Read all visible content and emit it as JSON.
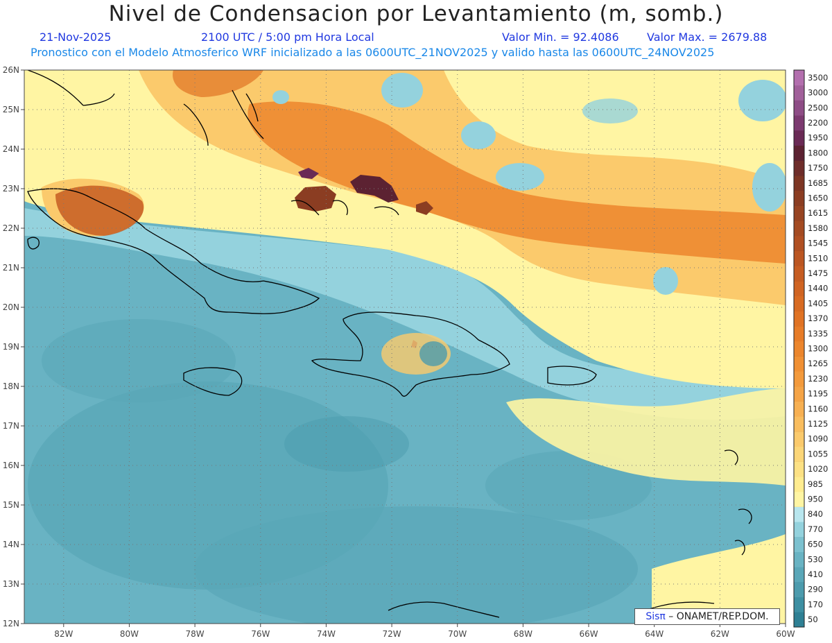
{
  "header": {
    "title": "Nivel de Condensacion por Levantamiento (m, somb.)",
    "date": "21-Nov-2025",
    "time": "2100 UTC / 5:00 pm Hora Local",
    "min_label": "Valor Min. = 92.4086",
    "max_label": "Valor Max. = 2679.88",
    "model_line": "Pronostico con el Modelo Atmosferico WRF inicializado a las 0600UTC_21NOV2025 y valido hasta las  0600UTC_24NOV2025"
  },
  "credit": {
    "logo_text": "Sisπ",
    "text": " – ONAMET/REP.DOM."
  },
  "map": {
    "lon_range": [
      -83.2,
      -60
    ],
    "lat_range": [
      12,
      26
    ],
    "lon_ticks": [
      "82W",
      "80W",
      "78W",
      "76W",
      "74W",
      "72W",
      "70W",
      "68W",
      "66W",
      "64W",
      "62W",
      "60W"
    ],
    "lat_ticks": [
      "12N",
      "13N",
      "14N",
      "15N",
      "16N",
      "17N",
      "18N",
      "19N",
      "20N",
      "21N",
      "22N",
      "23N",
      "24N",
      "25N",
      "26N"
    ]
  },
  "colorbar": {
    "labels": [
      "50",
      "170",
      "290",
      "410",
      "530",
      "650",
      "770",
      "840",
      "950",
      "985",
      "1020",
      "1055",
      "1090",
      "1125",
      "1160",
      "1195",
      "1230",
      "1265",
      "1300",
      "1335",
      "1370",
      "1405",
      "1440",
      "1475",
      "1510",
      "1545",
      "1580",
      "1615",
      "1650",
      "1685",
      "1750",
      "1800",
      "1950",
      "2200",
      "2500",
      "3000",
      "3500"
    ],
    "colors": [
      "#2f8094",
      "#3d8fa2",
      "#4c9bad",
      "#5aa7b8",
      "#69b3c3",
      "#7cc1cf",
      "#94d2dd",
      "#b8e6ee",
      "#fff5a3",
      "#ffec8f",
      "#fde184",
      "#fcd678",
      "#fbca6c",
      "#f9bd5e",
      "#f7b052",
      "#f5a446",
      "#f39a3c",
      "#f09034",
      "#ec862d",
      "#e77c28",
      "#e07324",
      "#d86b22",
      "#d06422",
      "#c65d22",
      "#bb5622",
      "#b05022",
      "#a44b22",
      "#974422",
      "#8b3d22",
      "#7d3624",
      "#6e2d2a",
      "#5c2232",
      "#6a2a55",
      "#7c3a70",
      "#8e4d86",
      "#a1609a",
      "#b36fae"
    ]
  }
}
